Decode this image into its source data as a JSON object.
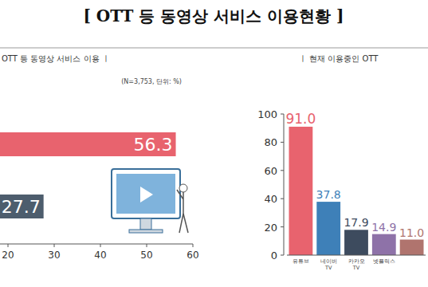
{
  "title": "[ OTT 등 동영상 서비스 이용현황 ]",
  "chart_data": [
    {
      "type": "bar",
      "orientation": "horizontal",
      "title": "OTT 등 동영상 서비스 이용 ㅣ",
      "subtitle": "(N=3,753, 단위: %)",
      "categories": [
        null,
        null
      ],
      "values": [
        56.3,
        27.7
      ],
      "colors": [
        "#e8636e",
        "#4d5d6d"
      ],
      "xlim": [
        0,
        60
      ],
      "xticks": [
        20,
        30,
        40,
        50,
        60
      ],
      "data_labels": true,
      "grid": false
    },
    {
      "type": "bar",
      "title": "ㅣ 현재 이용중인 OTT",
      "categories": [
        "유튜브",
        "네이버 TV",
        "카카오 TV",
        "넷플릭스",
        null
      ],
      "values": [
        91.0,
        37.8,
        17.9,
        14.9,
        11.0
      ],
      "value_labels": [
        "91.0",
        "37.8",
        "17.9",
        "14.9",
        "11.0"
      ],
      "colors": [
        "#e8636e",
        "#3e80b8",
        "#3d4b5e",
        "#8e72a8",
        "#b0746e"
      ],
      "ylim": [
        0,
        100
      ],
      "yticks": [
        0,
        20,
        40,
        60,
        80,
        100
      ],
      "data_labels": true,
      "grid": false
    }
  ]
}
